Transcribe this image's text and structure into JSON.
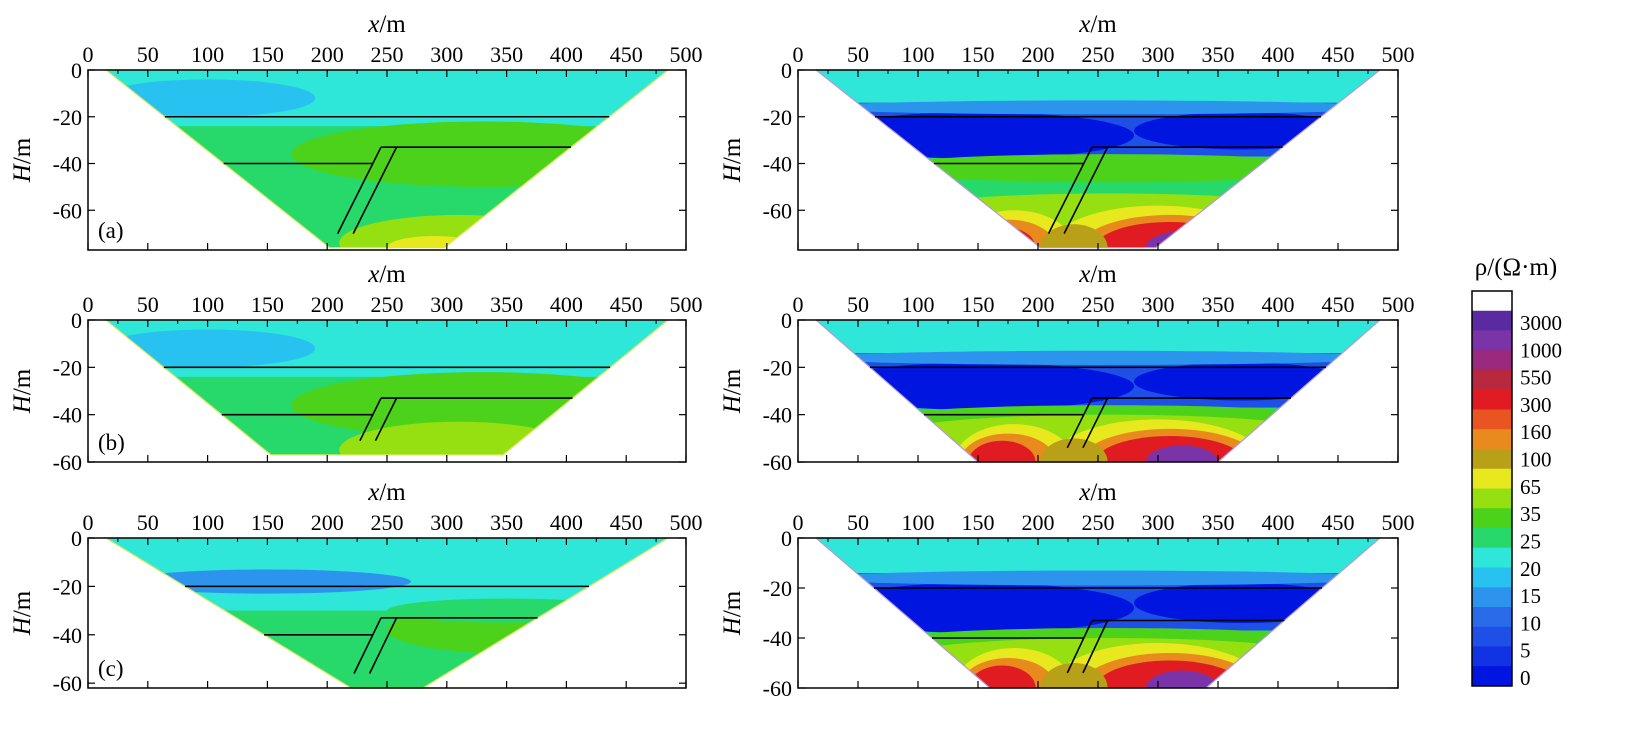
{
  "chart_data": {
    "type": "heatmap",
    "colorbar": {
      "title": "ρ/(Ω·m)",
      "levels": [
        "0",
        "5",
        "10",
        "15",
        "20",
        "25",
        "35",
        "65",
        "100",
        "160",
        "300",
        "550",
        "1000",
        "3000"
      ],
      "colors": [
        "#0015e0",
        "#1133e3",
        "#1e4fe6",
        "#2a6bea",
        "#2d94ee",
        "#27c2ef",
        "#2fe7d9",
        "#27d86a",
        "#4cd21a",
        "#96df10",
        "#e8e81e",
        "#b8a018",
        "#e88a1e",
        "#e85520",
        "#e01c22",
        "#b8283e",
        "#9a2a7e",
        "#7a34a8",
        "#5a2aa0",
        "#ffffff"
      ]
    },
    "panels": [
      {
        "id": "a-left",
        "tag": "(a)",
        "show_tag": true,
        "xlabel_var": "x",
        "xlabel_unit": "/m",
        "ylabel_var": "H",
        "ylabel_unit": "/m",
        "xticks": [
          "0",
          "50",
          "100",
          "150",
          "200",
          "250",
          "300",
          "350",
          "400",
          "450",
          "500"
        ],
        "yticks": [
          "0",
          "-20",
          "-40",
          "-60"
        ],
        "xlim": [
          0,
          500
        ],
        "ylim": [
          -77,
          0
        ],
        "depth": -76,
        "style": "true-model",
        "half_width_at_bottom": 48
      },
      {
        "id": "a-right",
        "tag": "",
        "show_tag": false,
        "xlabel_var": "x",
        "xlabel_unit": "/m",
        "ylabel_var": "H",
        "ylabel_unit": "/m",
        "xticks": [
          "0",
          "50",
          "100",
          "150",
          "200",
          "250",
          "300",
          "350",
          "400",
          "450",
          "500"
        ],
        "yticks": [
          "0",
          "-20",
          "-40",
          "-60"
        ],
        "xlim": [
          0,
          500
        ],
        "ylim": [
          -77,
          0
        ],
        "depth": -76,
        "style": "inversion",
        "half_width_at_bottom": 48
      },
      {
        "id": "b-left",
        "tag": "(b)",
        "show_tag": true,
        "xlabel_var": "x",
        "xlabel_unit": "/m",
        "ylabel_var": "H",
        "ylabel_unit": "/m",
        "xticks": [
          "0",
          "50",
          "100",
          "150",
          "200",
          "250",
          "300",
          "350",
          "400",
          "450",
          "500"
        ],
        "yticks": [
          "0",
          "-20",
          "-40",
          "-60"
        ],
        "xlim": [
          0,
          500
        ],
        "ylim": [
          -60,
          0
        ],
        "depth": -57,
        "style": "true-model",
        "half_width_at_bottom": 97
      },
      {
        "id": "b-right",
        "tag": "",
        "show_tag": false,
        "xlabel_var": "x",
        "xlabel_unit": "/m",
        "ylabel_var": "H",
        "ylabel_unit": "/m",
        "xticks": [
          "0",
          "50",
          "100",
          "150",
          "200",
          "250",
          "300",
          "350",
          "400",
          "450",
          "500"
        ],
        "yticks": [
          "0",
          "-20",
          "-40",
          "-60"
        ],
        "xlim": [
          0,
          500
        ],
        "ylim": [
          -60,
          0
        ],
        "depth": -60,
        "style": "inversion",
        "half_width_at_bottom": 100
      },
      {
        "id": "c-left",
        "tag": "(c)",
        "show_tag": true,
        "xlabel_var": "x",
        "xlabel_unit": "/m",
        "ylabel_var": "H",
        "ylabel_unit": "/m",
        "xticks": [
          "0",
          "50",
          "100",
          "150",
          "200",
          "250",
          "300",
          "350",
          "400",
          "450",
          "500"
        ],
        "yticks": [
          "0",
          "-20",
          "-40",
          "-60"
        ],
        "xlim": [
          0,
          500
        ],
        "ylim": [
          -62,
          0
        ],
        "depth": -62,
        "style": "true-model-c",
        "half_width_at_bottom": 30
      },
      {
        "id": "c-right",
        "tag": "",
        "show_tag": false,
        "xlabel_var": "x",
        "xlabel_unit": "/m",
        "ylabel_var": "H",
        "ylabel_unit": "/m",
        "xticks": [
          "0",
          "50",
          "100",
          "150",
          "200",
          "250",
          "300",
          "350",
          "400",
          "450",
          "500"
        ],
        "yticks": [
          "0",
          "-20",
          "-40",
          "-60"
        ],
        "xlim": [
          0,
          500
        ],
        "ylim": [
          -60,
          0
        ],
        "depth": -60,
        "style": "inversion",
        "half_width_at_bottom": 90
      }
    ],
    "model_lines": {
      "upper_interface": {
        "y": -20
      },
      "lower_left_interface": {
        "y": -40,
        "x_end": 220
      },
      "lower_right_interface": {
        "y": -33,
        "x_start": 258
      },
      "fault": {
        "x_top": [
          245,
          258
        ],
        "y_top": -33,
        "slope_dx_per_m": 0.98
      }
    }
  }
}
